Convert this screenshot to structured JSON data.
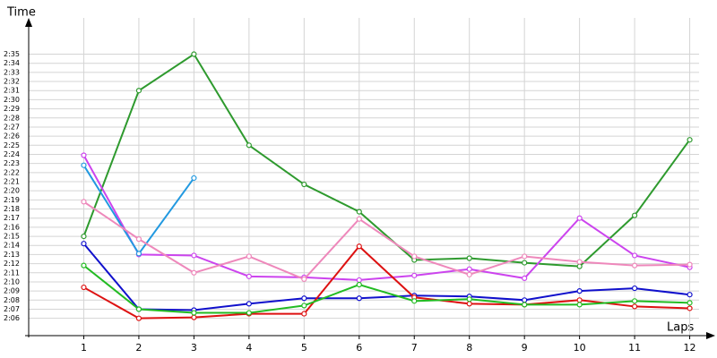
{
  "chart_data": {
    "type": "line",
    "y_label": "Time",
    "x_label": "Laps",
    "x": [
      1,
      2,
      3,
      4,
      5,
      6,
      7,
      8,
      9,
      10,
      11,
      12
    ],
    "xlim": [
      0,
      12.3
    ],
    "xticks": [
      1,
      2,
      3,
      4,
      5,
      6,
      7,
      8,
      9,
      10,
      11,
      12
    ],
    "ylim": [
      124.1,
      158
    ],
    "yticks": [
      {
        "value": 126,
        "label": "2:06"
      },
      {
        "value": 127,
        "label": "2:07"
      },
      {
        "value": 128,
        "label": "2:08"
      },
      {
        "value": 129,
        "label": "2:09"
      },
      {
        "value": 130,
        "label": "2:10"
      },
      {
        "value": 131,
        "label": "2:11"
      },
      {
        "value": 132,
        "label": "2:12"
      },
      {
        "value": 133,
        "label": "2:13"
      },
      {
        "value": 134,
        "label": "2:14"
      },
      {
        "value": 135,
        "label": "2:15"
      },
      {
        "value": 136,
        "label": "2:16"
      },
      {
        "value": 137,
        "label": "2:17"
      },
      {
        "value": 138,
        "label": "2:18"
      },
      {
        "value": 139,
        "label": "2:19"
      },
      {
        "value": 140,
        "label": "2:20"
      },
      {
        "value": 141,
        "label": "2:21"
      },
      {
        "value": 142,
        "label": "2:22"
      },
      {
        "value": 143,
        "label": "2:23"
      },
      {
        "value": 144,
        "label": "2:24"
      },
      {
        "value": 145,
        "label": "2:25"
      },
      {
        "value": 146,
        "label": "2:26"
      },
      {
        "value": 147,
        "label": "2:27"
      },
      {
        "value": 148,
        "label": "2:28"
      },
      {
        "value": 149,
        "label": "2:29"
      },
      {
        "value": 150,
        "label": "2:30"
      },
      {
        "value": 151,
        "label": "2:31"
      },
      {
        "value": 152,
        "label": "2:32"
      },
      {
        "value": 153,
        "label": "2:33"
      },
      {
        "value": 154,
        "label": "2:34"
      },
      {
        "value": 155,
        "label": "2:35"
      }
    ],
    "grid": true,
    "series": [
      {
        "color": "#2e9a2e",
        "values": [
          135,
          151,
          155,
          145,
          140.7,
          137.7,
          132.4,
          132.6,
          132.1,
          131.7,
          137.3,
          145.6
        ]
      },
      {
        "color": "#cc44ee",
        "values": [
          143.9,
          133,
          132.9,
          130.6,
          130.5,
          130.2,
          130.7,
          131.4,
          130.4,
          137,
          132.9,
          131.6
        ]
      },
      {
        "color": "#2299e0",
        "values": [
          142.8,
          133.1,
          141.4,
          null,
          null,
          null,
          null,
          null,
          null,
          null,
          null,
          null
        ]
      },
      {
        "color": "#ee88bb",
        "values": [
          138.8,
          134.7,
          131,
          132.8,
          130.3,
          136.9,
          132.8,
          130.8,
          132.8,
          132.2,
          131.8,
          131.9
        ]
      },
      {
        "color": "#1010cc",
        "values": [
          134.2,
          127,
          126.9,
          127.6,
          128.2,
          128.2,
          128.5,
          128.4,
          128,
          129,
          129.3,
          128.6
        ]
      },
      {
        "color": "#dd1111",
        "values": [
          129.4,
          126,
          126.1,
          126.5,
          126.5,
          133.9,
          128.3,
          127.6,
          127.5,
          128,
          127.3,
          127.1
        ]
      },
      {
        "color": "#22bb22",
        "values": [
          131.8,
          127,
          126.6,
          126.6,
          127.4,
          129.7,
          127.9,
          128.1,
          127.5,
          127.5,
          127.9,
          127.7
        ]
      }
    ]
  }
}
